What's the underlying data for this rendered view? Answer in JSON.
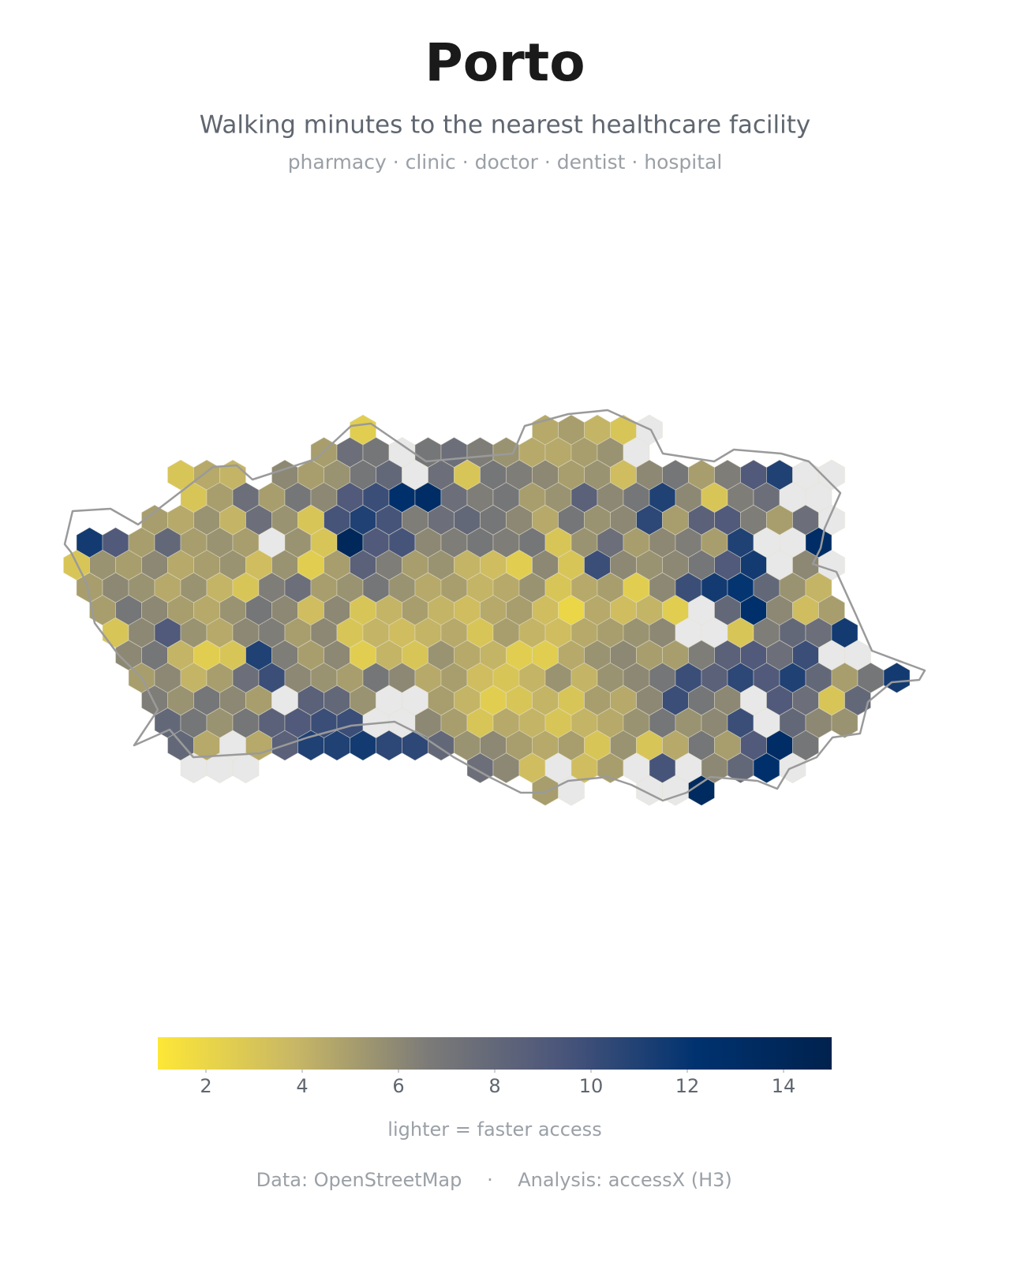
{
  "title": "Porto",
  "subtitle": "Walking minutes to the nearest healthcare facility",
  "facilities": "pharmacy · clinic · doctor · dentist · hospital",
  "map": {
    "type": "hexbin",
    "colormap": [
      "#fde737",
      "#c9b865",
      "#7c7b78",
      "#4a557a",
      "#00326f",
      "#00224e"
    ],
    "null_color": "#e8e8e8",
    "clim": [
      1,
      15
    ],
    "colorbar_ticks": [
      2,
      4,
      6,
      8,
      10,
      12,
      14
    ],
    "colorbar_caption": "lighter = faster access",
    "cells": [
      {
        "row": 0,
        "col": 11,
        "values": [
          2.5
        ]
      },
      {
        "row": 0,
        "col": 18,
        "values": [
          4.5,
          5,
          4,
          3,
          null
        ]
      },
      {
        "row": 1,
        "col": 9,
        "values": [
          5,
          7.5,
          7,
          null,
          7,
          7.5,
          6.5,
          5.5,
          4.5,
          4.5,
          5,
          5.5,
          null
        ]
      },
      {
        "row": 2,
        "col": 4,
        "values": [
          3,
          4.5,
          4
        ]
      },
      {
        "row": 2,
        "col": 8,
        "values": [
          6,
          5,
          5.5,
          7,
          8,
          null,
          7.5,
          3,
          7,
          6.5,
          6,
          5,
          5.5,
          3.5,
          6,
          7,
          5,
          6.5,
          9,
          11,
          null,
          null
        ]
      },
      {
        "row": 3,
        "col": 4,
        "values": [
          3,
          5,
          7.5,
          5,
          7,
          6,
          9,
          10,
          12.5,
          13,
          7.5,
          6.5,
          7,
          5,
          5.5,
          8.5,
          6,
          7,
          11,
          6,
          3,
          6.5,
          7.5,
          null,
          null
        ]
      },
      {
        "row": 4,
        "col": 3,
        "values": [
          5,
          4.5,
          5.5,
          4,
          7.5,
          5.5,
          3,
          9.5,
          11,
          9.5,
          6.5,
          7.5,
          8,
          7,
          6,
          4.5,
          7,
          5.5,
          6,
          10.5,
          5,
          8.5,
          9,
          6.5,
          5,
          7.5,
          null
        ]
      },
      {
        "row": 5,
        "col": 0,
        "values": [
          11.5,
          9,
          5,
          8,
          5,
          5.5,
          5,
          null,
          5.5,
          3,
          14,
          9,
          9.5,
          6,
          6.5,
          7,
          6.5,
          7,
          3,
          5.5,
          7.5,
          5,
          6,
          6.5,
          5,
          11,
          null,
          null,
          13
        ]
      },
      {
        "row": 6,
        "col": 0,
        "values": [
          3,
          5.5,
          5,
          6,
          4.5,
          5,
          5.5,
          3.5,
          5.5,
          2.5,
          5,
          8.5,
          6.5,
          5,
          5.5,
          4,
          3.5,
          2.5,
          6,
          3,
          10,
          6,
          5.5,
          6,
          7,
          9,
          11.5,
          null,
          6,
          null
        ]
      },
      {
        "row": 7,
        "col": 0,
        "values": [
          5,
          6,
          5.5,
          4.5,
          5.5,
          4,
          3,
          6.5,
          7.5,
          5,
          5.5,
          7,
          5.5,
          4.5,
          5,
          4,
          4.5,
          5.5,
          3,
          4.5,
          5,
          2.5,
          6,
          10,
          11.5,
          12,
          8,
          5.5,
          4
        ]
      },
      {
        "row": 8,
        "col": 1,
        "values": [
          5,
          7,
          6,
          5,
          4.5,
          5.5,
          7,
          6,
          3.5,
          6,
          3,
          4,
          5,
          4,
          3.5,
          4.5,
          5,
          3.5,
          2,
          4.5,
          3.5,
          4,
          2.5,
          null,
          8,
          12.5,
          6,
          3.5,
          5
        ]
      },
      {
        "row": 9,
        "col": 1,
        "values": [
          3,
          6,
          9,
          5.5,
          4.5,
          6,
          6.5,
          5,
          6,
          3,
          4,
          3.5,
          4,
          4.5,
          3,
          5,
          4,
          3.5,
          4.5,
          5,
          5.5,
          6,
          null,
          null,
          3,
          6.5,
          8,
          7.5,
          11.5
        ]
      },
      {
        "row": 10,
        "col": 2,
        "values": [
          6,
          7,
          4,
          2.5,
          3,
          11,
          6.5,
          5,
          6,
          2.5,
          4,
          3,
          5.5,
          4.5,
          4,
          2.5,
          2.5,
          4.5,
          5.5,
          6,
          5,
          5,
          6.5,
          8.5,
          9,
          7.5,
          10,
          null,
          null
        ]
      },
      {
        "row": 11,
        "col": 2,
        "values": [
          5,
          6,
          4,
          5,
          7.5,
          10,
          6,
          5.5,
          5,
          7,
          6,
          4.5,
          5,
          3.5,
          3,
          4,
          5.5,
          4,
          5.5,
          6,
          7,
          10,
          8.5,
          10.5,
          9,
          11,
          8,
          5,
          7,
          11.5
        ]
      },
      {
        "row": 12,
        "col": 3,
        "values": [
          6.5,
          5.5,
          7,
          6,
          5,
          null,
          8.5,
          8,
          5.5,
          null,
          null,
          5,
          4,
          2.5,
          3,
          4,
          3,
          5,
          4.5,
          6,
          10,
          7,
          6,
          null,
          9,
          7.5,
          3,
          8
        ]
      },
      {
        "row": 13,
        "col": 3,
        "values": [
          8,
          7,
          5.5,
          7,
          8.5,
          9,
          10,
          10,
          null,
          null,
          6,
          5,
          3,
          4.5,
          4,
          3,
          4,
          4.5,
          5.5,
          7,
          5.5,
          6,
          10,
          null,
          8,
          6,
          5.5
        ]
      },
      {
        "row": 14,
        "col": 4,
        "values": [
          8,
          4.5,
          null,
          4.5,
          8.5,
          11,
          11,
          11.5,
          10.5,
          10.5,
          8,
          5.5,
          6,
          5,
          4.5,
          5,
          3,
          5.5,
          3,
          4.5,
          7,
          5,
          9,
          13,
          7
        ]
      },
      {
        "row": 15,
        "col": 4,
        "values": [
          null,
          null,
          null
        ]
      },
      {
        "row": 15,
        "col": 15,
        "values": [
          7.5,
          6,
          3.5,
          null,
          3.5,
          5,
          null,
          9.5,
          null,
          6,
          8,
          12.5,
          null
        ]
      },
      {
        "row": 16,
        "col": 18,
        "values": [
          5,
          null
        ]
      },
      {
        "row": 16,
        "col": 22,
        "values": [
          null,
          null,
          13.5
        ]
      }
    ]
  },
  "footer": {
    "data": "Data: OpenStreetMap",
    "separator": "·",
    "analysis": "Analysis: accessX (H3)"
  }
}
